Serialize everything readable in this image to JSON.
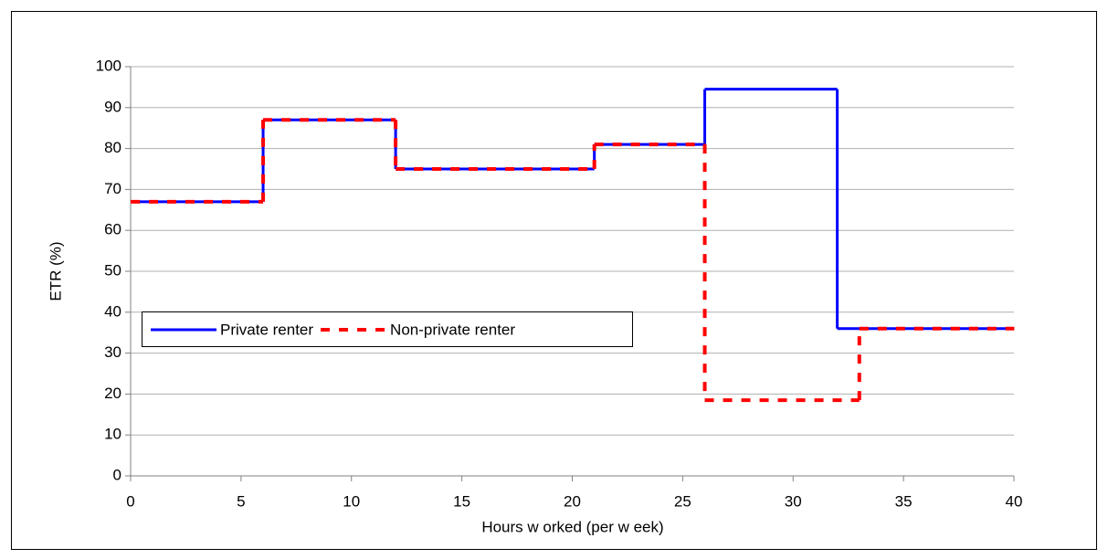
{
  "chart_data": {
    "type": "step",
    "x_label": "Hours w orked (per w eek)",
    "y_label": "ETR (%)",
    "xlim": [
      0,
      40
    ],
    "xticks": [
      0,
      5,
      10,
      15,
      20,
      25,
      30,
      35,
      40
    ],
    "ylim": [
      0,
      100
    ],
    "yticks": [
      0,
      10,
      20,
      30,
      40,
      50,
      60,
      70,
      80,
      90,
      100
    ],
    "grid": true,
    "legend": "lower left",
    "series": [
      {
        "name": "Private renter",
        "color": "#0000ff",
        "style": "solid",
        "x": [
          0,
          6,
          12,
          21,
          26,
          32,
          40
        ],
        "values": [
          67,
          87,
          75,
          81,
          94.5,
          36,
          36
        ]
      },
      {
        "name": "Non-private renter",
        "color": "#ff0000",
        "style": "dashed",
        "x": [
          0,
          6,
          12,
          21,
          26,
          33,
          40
        ],
        "values": [
          67,
          87,
          75,
          81,
          18.5,
          36,
          36
        ]
      }
    ]
  }
}
